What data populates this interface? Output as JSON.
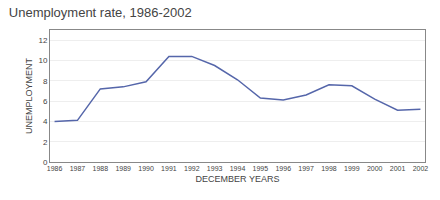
{
  "chart_data": {
    "type": "line",
    "title": "Unemployment rate, 1986-2002",
    "xlabel": "DECEMBER YEARS",
    "ylabel": "UNEMPLOYMENT",
    "x": [
      1986,
      1987,
      1988,
      1989,
      1990,
      1991,
      1992,
      1993,
      1994,
      1995,
      1996,
      1997,
      1998,
      1999,
      2000,
      2001,
      2002
    ],
    "values": [
      4.0,
      4.1,
      7.2,
      7.4,
      7.9,
      10.4,
      10.4,
      9.5,
      8.1,
      6.3,
      6.1,
      6.6,
      7.6,
      7.5,
      6.2,
      5.1,
      5.2
    ],
    "color": "#5566aa",
    "xlim": [
      1985.8,
      2002.2
    ],
    "xticks": [
      1986,
      1987,
      1988,
      1989,
      1990,
      1991,
      1992,
      1993,
      1994,
      1995,
      1996,
      1997,
      1998,
      1999,
      2000,
      2001,
      2002
    ],
    "ylim": [
      0,
      13
    ],
    "yticks": [
      0,
      2,
      4,
      6,
      8,
      10,
      12
    ],
    "grid": true
  }
}
